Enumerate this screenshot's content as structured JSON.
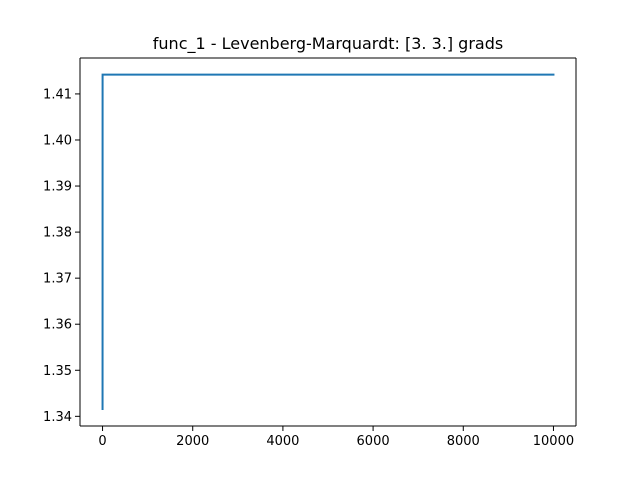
{
  "chart_data": {
    "type": "line",
    "title": "func_1 - Levenberg-Marquardt: [3. 3.] grads",
    "xlabel": "",
    "ylabel": "",
    "xlim": [
      -500,
      10500
    ],
    "ylim": [
      1.3379,
      1.4178
    ],
    "xticks": [
      0,
      2000,
      4000,
      6000,
      8000,
      10000
    ],
    "xtick_labels": [
      "0",
      "2000",
      "4000",
      "6000",
      "8000",
      "10000"
    ],
    "yticks": [
      1.34,
      1.35,
      1.36,
      1.37,
      1.38,
      1.39,
      1.4,
      1.41
    ],
    "ytick_labels": [
      "1.34",
      "1.35",
      "1.36",
      "1.37",
      "1.38",
      "1.39",
      "1.40",
      "1.41"
    ],
    "grid": false,
    "series": [
      {
        "color": "#1f77b4",
        "x": [
          0,
          1,
          2,
          10000
        ],
        "y": [
          1.3416,
          1.4142,
          1.4142,
          1.4142
        ]
      }
    ]
  }
}
